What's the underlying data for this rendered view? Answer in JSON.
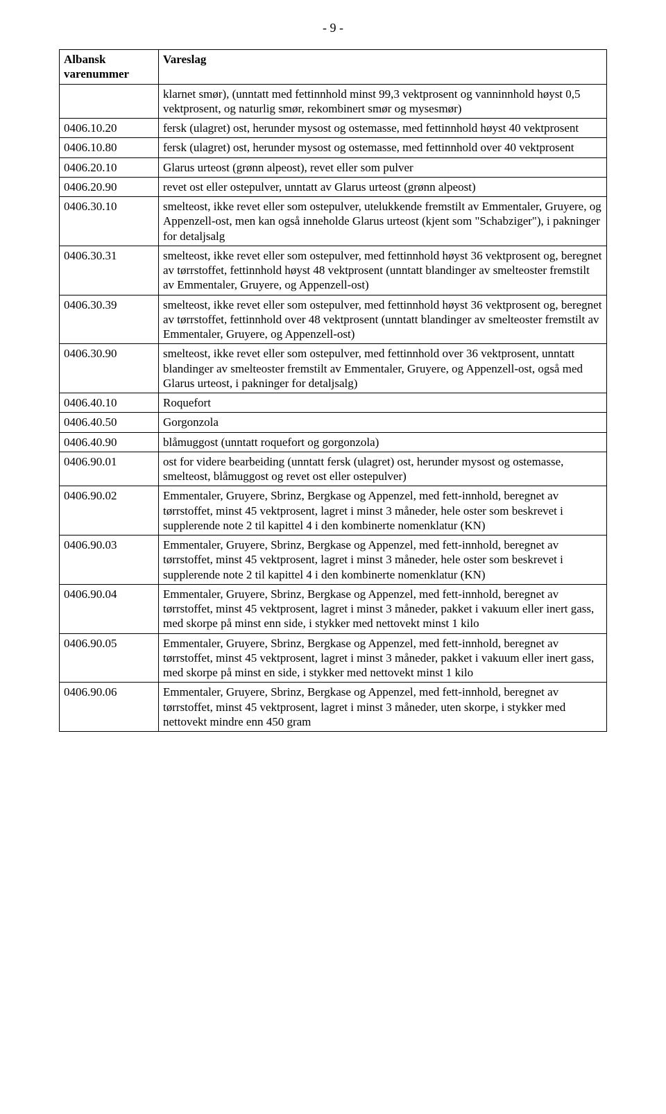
{
  "pageNumber": "- 9 -",
  "table": {
    "headers": {
      "code": "Albansk varenummer",
      "desc": "Vareslag"
    },
    "rows": [
      {
        "code": "",
        "desc": "klarnet smør), (unntatt med fettinnhold minst 99,3 vektprosent og vanninnhold høyst 0,5 vektprosent, og naturlig smør, rekombinert smør og mysesmør)"
      },
      {
        "code": "0406.10.20",
        "desc": "fersk (ulagret) ost, herunder mysost og ostemasse, med fettinnhold høyst 40 vektprosent"
      },
      {
        "code": "0406.10.80",
        "desc": "fersk (ulagret) ost, herunder mysost og ostemasse, med fettinnhold over 40 vektprosent"
      },
      {
        "code": "0406.20.10",
        "desc": "Glarus urteost (grønn alpeost), revet eller som pulver"
      },
      {
        "code": "0406.20.90",
        "desc": "revet ost eller ostepulver, unntatt av Glarus urteost (grønn alpeost)"
      },
      {
        "code": "0406.30.10",
        "desc": "smelteost, ikke revet eller som ostepulver, utelukkende fremstilt av Emmentaler, Gruyere, og Appenzell-ost, men kan også inneholde Glarus urteost (kjent som \"Schabziger\"), i pakninger for detaljsalg"
      },
      {
        "code": "0406.30.31",
        "desc": "smelteost, ikke revet eller som ostepulver, med fettinnhold høyst 36 vektprosent og, beregnet av tørrstoffet, fettinnhold høyst 48 vektprosent (unntatt blandinger av smelteoster fremstilt av Emmentaler, Gruyere, og Appenzell-ost)"
      },
      {
        "code": "0406.30.39",
        "desc": "smelteost, ikke revet eller som ostepulver, med fettinnhold høyst 36 vektprosent og, beregnet av tørrstoffet, fettinnhold over 48 vektprosent (unntatt blandinger av smelteoster fremstilt av Emmentaler, Gruyere, og Appenzell-ost)"
      },
      {
        "code": "0406.30.90",
        "desc": "smelteost, ikke revet eller som ostepulver, med fettinnhold over 36 vektprosent, unntatt blandinger av smelteoster fremstilt av Emmentaler, Gruyere, og Appenzell-ost, også med Glarus urteost, i pakninger for detaljsalg)"
      },
      {
        "code": "0406.40.10",
        "desc": "Roquefort"
      },
      {
        "code": "0406.40.50",
        "desc": "Gorgonzola"
      },
      {
        "code": "0406.40.90",
        "desc": "blåmuggost (unntatt roquefort og gorgonzola)"
      },
      {
        "code": "0406.90.01",
        "desc": "ost for videre bearbeiding (unntatt fersk (ulagret) ost, herunder mysost og ostemasse, smelteost, blåmuggost og revet ost eller ostepulver)"
      },
      {
        "code": "0406.90.02",
        "desc": "Emmentaler, Gruyere, Sbrinz, Bergkase og Appenzel, med fett-innhold, beregnet av tørrstoffet, minst 45 vektprosent, lagret i minst 3 måneder, hele oster som beskrevet i supplerende note 2 til kapittel 4 i den kombinerte nomenklatur (KN)"
      },
      {
        "code": "0406.90.03",
        "desc": "Emmentaler, Gruyere, Sbrinz, Bergkase og Appenzel, med fett-innhold, beregnet av tørrstoffet, minst 45 vektprosent, lagret i minst 3 måneder, hele oster som beskrevet i supplerende note 2 til kapittel 4 i den kombinerte nomenklatur (KN)"
      },
      {
        "code": "0406.90.04",
        "desc": "Emmentaler, Gruyere, Sbrinz, Bergkase og Appenzel, med fett-innhold, beregnet av tørrstoffet, minst 45 vektprosent, lagret i minst 3 måneder, pakket i vakuum eller inert gass, med skorpe på minst enn side, i stykker med nettovekt minst 1 kilo"
      },
      {
        "code": "0406.90.05",
        "desc": "Emmentaler, Gruyere, Sbrinz, Bergkase og Appenzel, med fett-innhold, beregnet av tørrstoffet, minst 45 vektprosent, lagret i minst 3 måneder, pakket i vakuum eller inert gass, med skorpe på minst en side, i stykker med nettovekt minst 1 kilo"
      },
      {
        "code": "0406.90.06",
        "desc": "Emmentaler, Gruyere, Sbrinz, Bergkase og Appenzel, med fett-innhold, beregnet av tørrstoffet, minst 45 vektprosent, lagret i minst 3 måneder, uten skorpe, i stykker med nettovekt mindre enn 450 gram"
      }
    ]
  }
}
